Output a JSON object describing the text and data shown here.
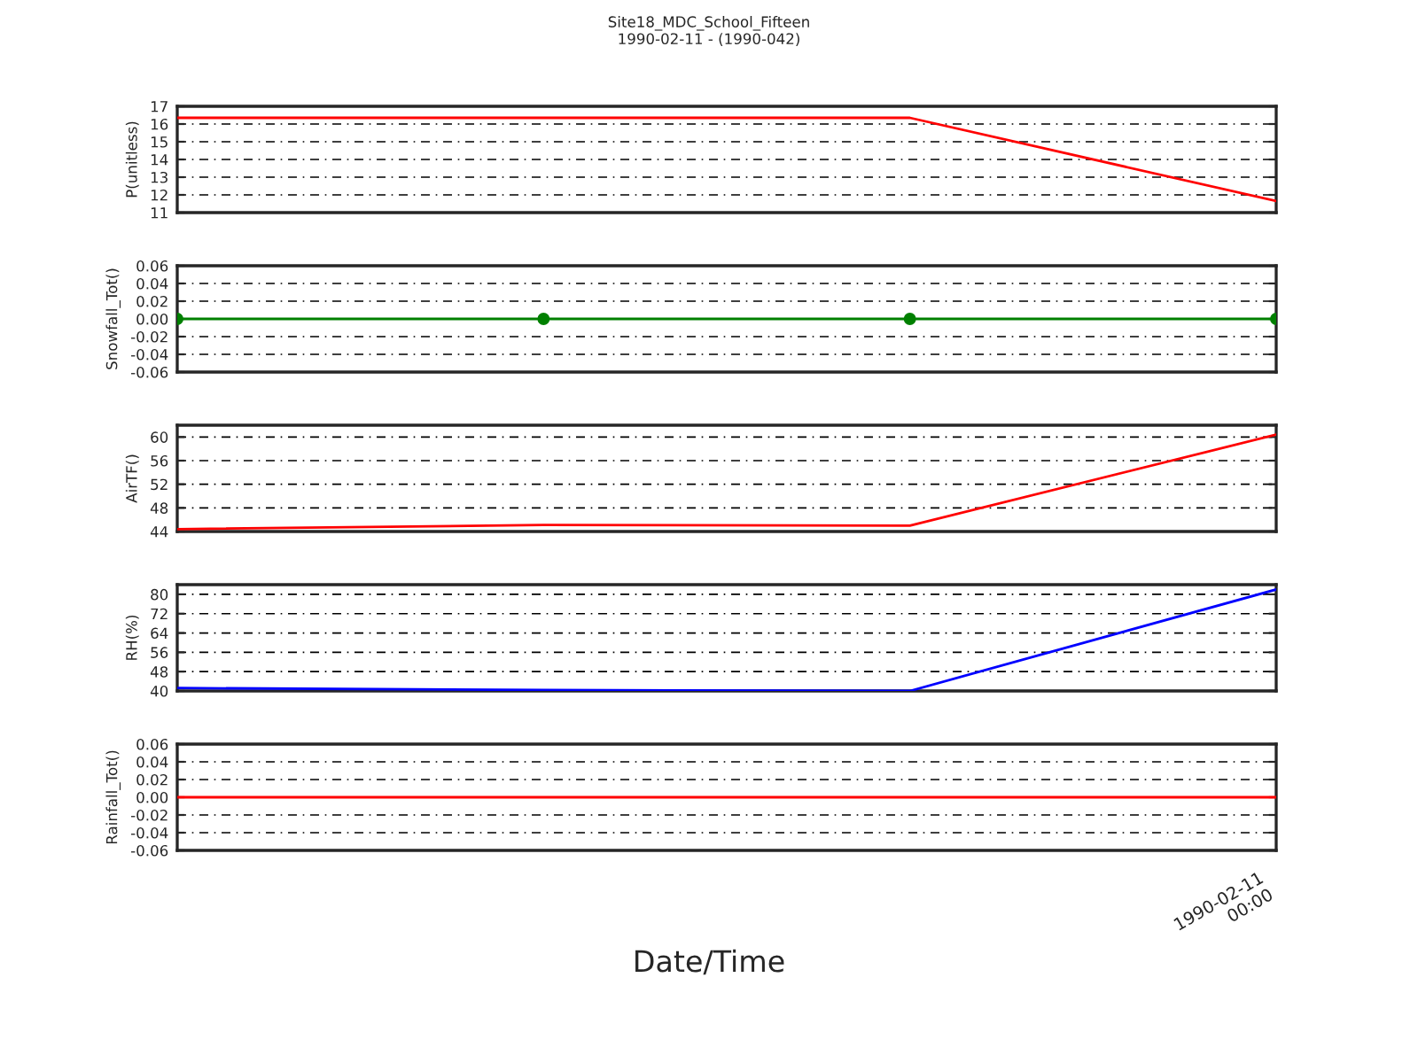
{
  "chart_data": [
    {
      "type": "line",
      "title": "Site18_MDC_School_Fifteen",
      "subtitle": "1990-02-11 - (1990-042)",
      "ylabel": "P(unitless)",
      "categories": [
        null,
        null,
        null,
        null
      ],
      "series": [
        {
          "color": "#ff0000",
          "values": [
            16.35,
            16.35,
            16.35,
            11.65
          ]
        }
      ],
      "ylim": [
        11,
        17
      ],
      "yticks": [
        11,
        12,
        13,
        14,
        15,
        16,
        17
      ],
      "grid": "y",
      "tick_labels": "y",
      "marker": "none",
      "line_style": "solid"
    },
    {
      "type": "line",
      "ylabel": "Snowfall_Tot()",
      "categories": [
        null,
        null,
        null,
        null
      ],
      "series": [
        {
          "color": "#008000",
          "values": [
            0,
            0,
            0,
            0
          ]
        }
      ],
      "ylim": [
        -0.06,
        0.06
      ],
      "yticks": [
        {
          "value": -0.06,
          "label": "-0.06"
        },
        {
          "value": -0.04,
          "label": "-0.04"
        },
        {
          "value": -0.02,
          "label": "-0.02"
        },
        {
          "value": 0,
          "label": "0.00"
        },
        {
          "value": 0.02,
          "label": "0.02"
        },
        {
          "value": 0.04,
          "label": "0.04"
        },
        {
          "value": 0.06,
          "label": "0.06"
        }
      ],
      "grid": "y",
      "tick_labels": "y",
      "marker": "circle",
      "line_style": "solid"
    },
    {
      "type": "line",
      "ylabel": "AirTF()",
      "categories": [
        null,
        null,
        null,
        null
      ],
      "series": [
        {
          "color": "#ff0000",
          "values": [
            44.4,
            45.1,
            45.0,
            60.4
          ]
        }
      ],
      "ylim": [
        44,
        62
      ],
      "yticks": [
        44,
        48,
        52,
        56,
        60
      ],
      "grid": "y",
      "tick_labels": "y",
      "marker": "none",
      "line_style": "solid"
    },
    {
      "type": "line",
      "ylabel": "RH(%)",
      "categories": [
        null,
        null,
        null,
        null
      ],
      "series": [
        {
          "color": "#0000ff",
          "values": [
            41.2,
            40.4,
            40.0,
            82.0
          ]
        }
      ],
      "ylim": [
        40,
        84
      ],
      "yticks": [
        40,
        48,
        56,
        64,
        72,
        80
      ],
      "grid": "y",
      "tick_labels": "y",
      "marker": "none",
      "line_style": "solid"
    },
    {
      "type": "line",
      "ylabel": "Rainfall_Tot()",
      "xlabel": "Date/Time",
      "categories": [
        null,
        null,
        null,
        null
      ],
      "series": [
        {
          "color": "#ff0000",
          "values": [
            0,
            0,
            0,
            0
          ]
        }
      ],
      "annotations": [
        "1990-02-11\n00:00"
      ],
      "ylim": [
        -0.06,
        0.06
      ],
      "yticks": [
        {
          "value": -0.06,
          "label": "-0.06"
        },
        {
          "value": -0.04,
          "label": "-0.04"
        },
        {
          "value": -0.02,
          "label": "-0.02"
        },
        {
          "value": 0,
          "label": "0.00"
        },
        {
          "value": 0.02,
          "label": "0.02"
        },
        {
          "value": 0.04,
          "label": "0.04"
        },
        {
          "value": 0.06,
          "label": "0.06"
        }
      ],
      "grid": "y",
      "tick_labels": "y",
      "marker": "none",
      "line_style": "solid"
    }
  ]
}
